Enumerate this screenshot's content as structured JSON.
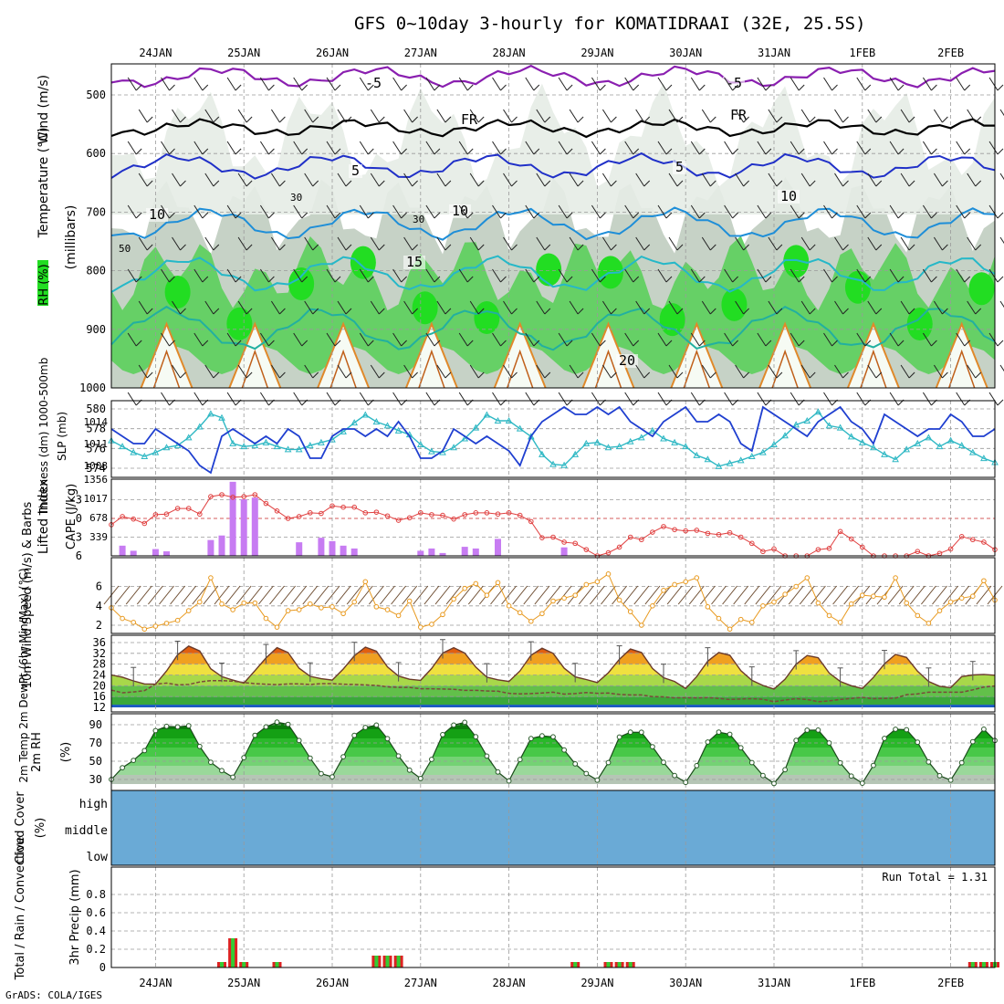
{
  "header": {
    "title": "GFS 0~10day 3-hourly for KOMATIDRAAI (32E, 25.5S)",
    "credit": "GrADS: COLA/IGES"
  },
  "colors": {
    "rh_green": "#22dd22",
    "rh_grey": "#a9b8a9",
    "cape": "#c77cf2",
    "lifted": "#e04040",
    "slp": "#1f3fd0",
    "thickness": "#2fb8c4",
    "wind": "#e89a20",
    "cloud_bg": "#6aaad6",
    "cloud_fill": "#dadada",
    "rain": "#dd2222",
    "conv": "#33cc33"
  },
  "chart_data": {
    "type": "line",
    "time_axis": {
      "step_hours": 3,
      "day_labels": [
        "24JAN",
        "25JAN",
        "26JAN",
        "27JAN",
        "28JAN",
        "29JAN",
        "30JAN",
        "31JAN",
        "1FEB",
        "2FEB"
      ],
      "n_steps": 81
    },
    "panels": [
      {
        "id": "upper_air",
        "ylabel_parts": [
          "RH (%)",
          "Temperature (°C)",
          "Wind (m/s)",
          "(millibars)"
        ],
        "yticks": [
          500,
          600,
          700,
          800,
          900,
          1000
        ],
        "isotherm_labels": [
          "-5",
          "FR",
          "-5",
          "FR",
          "5",
          "5",
          "10",
          "10",
          "10",
          "15",
          "20"
        ],
        "rh_labels": [
          "30",
          "30",
          "50"
        ]
      },
      {
        "id": "slp_thickness",
        "ylabel": "SLP (mb)",
        "ylabel2": "Thickness (dm) 1000-500mb",
        "yticks_left": [
          "574",
          "576",
          "578",
          "580"
        ],
        "yticks_right": [
          "1008",
          "1011",
          "1014"
        ],
        "slp": [
          1013,
          1012,
          1011,
          1011,
          1013,
          1012,
          1011,
          1010,
          1008,
          1007,
          1012,
          1013,
          1012,
          1011,
          1012,
          1011,
          1013,
          1012,
          1009,
          1009,
          1012,
          1013,
          1013,
          1012,
          1013,
          1012,
          1014,
          1012,
          1009,
          1009,
          1010,
          1013,
          1012,
          1011,
          1012,
          1011,
          1010,
          1008,
          1012,
          1014,
          1015,
          1016,
          1015,
          1015,
          1016,
          1015,
          1016,
          1014,
          1013,
          1012,
          1014,
          1015,
          1016,
          1014,
          1014,
          1015,
          1014,
          1011,
          1010,
          1016,
          1015,
          1014,
          1013,
          1012,
          1014,
          1015,
          1016,
          1014,
          1013,
          1011,
          1015,
          1014,
          1013,
          1012,
          1013,
          1013,
          1015,
          1014,
          1012,
          1012,
          1013
        ],
        "thickness": [
          576.8,
          576.2,
          575.6,
          575.2,
          575.6,
          576.1,
          576.3,
          577.1,
          578.2,
          579.5,
          579.1,
          576.5,
          576.2,
          576.3,
          576.6,
          576.2,
          575.9,
          575.9,
          576.3,
          576.6,
          576.9,
          577.7,
          578.6,
          579.4,
          578.7,
          578.3,
          577.8,
          577.4,
          576.4,
          575.7,
          575.6,
          576.1,
          577.0,
          578.1,
          579.4,
          578.8,
          578.8,
          578.0,
          577.2,
          575.4,
          574.4,
          574.3,
          575.4,
          576.5,
          576.6,
          576.1,
          576.2,
          576.7,
          577.1,
          577.8,
          577.0,
          576.6,
          576.2,
          575.3,
          574.9,
          574.2,
          574.5,
          574.8,
          575.2,
          575.6,
          576.4,
          577.3,
          578.4,
          578.8,
          579.7,
          578.3,
          578.1,
          577.2,
          576.6,
          576.1,
          575.4,
          574.9,
          575.9,
          576.5,
          577.1,
          576.2,
          576.8,
          576.3,
          575.6,
          575.0,
          574.6
        ]
      },
      {
        "id": "cape_li",
        "ylabel": "Lifted Index",
        "ylabel2": "CAPE (J/kg)",
        "yticks_left": [
          "-3",
          "0",
          "3",
          "6"
        ],
        "yticks_right": [
          "339",
          "678",
          "1017",
          "1356"
        ],
        "lifted_index": [
          1.0,
          -0.3,
          0.1,
          0.8,
          -0.6,
          -0.7,
          -1.6,
          -1.6,
          -0.7,
          -3.5,
          -3.8,
          -3.4,
          -3.5,
          -3.8,
          -2.4,
          -1.2,
          0.0,
          -0.3,
          -0.9,
          -0.8,
          -2.0,
          -1.8,
          -1.8,
          -0.9,
          -1.0,
          -0.4,
          0.3,
          -0.1,
          -0.9,
          -0.6,
          -0.5,
          0.1,
          -0.6,
          -0.9,
          -0.9,
          -0.7,
          -0.9,
          -0.5,
          0.5,
          3.1,
          3.0,
          3.8,
          4.0,
          5.0,
          6.1,
          5.5,
          4.6,
          3.0,
          3.4,
          2.2,
          1.3,
          1.8,
          2.0,
          1.9,
          2.4,
          2.6,
          2.3,
          3.0,
          4.0,
          5.3,
          4.9,
          6.2,
          6.5,
          6.2,
          5.0,
          4.8,
          2.1,
          3.3,
          4.6,
          6.5,
          6.2,
          6.3,
          6.6,
          5.3,
          6.4,
          5.6,
          4.9,
          2.9,
          3.4,
          3.8,
          5.0
        ],
        "cape": [
          0,
          180,
          90,
          0,
          120,
          80,
          0,
          0,
          0,
          280,
          360,
          1310,
          1000,
          1030,
          0,
          0,
          0,
          240,
          0,
          320,
          260,
          180,
          130,
          0,
          0,
          0,
          0,
          0,
          90,
          130,
          50,
          0,
          160,
          130,
          0,
          300,
          0,
          0,
          0,
          0,
          0,
          150,
          0,
          0,
          0,
          0,
          0,
          0,
          0,
          0,
          0,
          0,
          0,
          0,
          0,
          0,
          0,
          0,
          0,
          0,
          0,
          0,
          0,
          0,
          0,
          0,
          0,
          0,
          0,
          0,
          0,
          0,
          0,
          0,
          0,
          0,
          0,
          0,
          0,
          0,
          0
        ]
      },
      {
        "id": "wind10m",
        "ylabel": "10m Wind Speed (m/s) & Barbs",
        "yticks": [
          "2",
          "4",
          "6"
        ],
        "speed": [
          3.8,
          2.7,
          2.3,
          1.6,
          1.9,
          2.2,
          2.5,
          3.5,
          4.4,
          6.9,
          4.2,
          3.6,
          4.3,
          4.3,
          2.7,
          1.8,
          3.5,
          3.6,
          4.2,
          3.8,
          3.9,
          3.2,
          4.4,
          6.5,
          3.9,
          3.6,
          3.0,
          4.5,
          1.8,
          2.1,
          3.1,
          4.7,
          5.8,
          6.3,
          5.1,
          6.4,
          4.0,
          3.3,
          2.4,
          3.2,
          4.5,
          4.8,
          5.1,
          6.2,
          6.5,
          7.3,
          4.6,
          3.4,
          2.0,
          4.0,
          5.6,
          6.2,
          6.5,
          6.9,
          3.9,
          2.7,
          1.6,
          2.6,
          2.3,
          4.0,
          4.4,
          5.2,
          6.0,
          6.9,
          4.3,
          3.0,
          2.3,
          4.2,
          5.1,
          5.0,
          4.9,
          6.9,
          4.3,
          3.0,
          2.2,
          3.5,
          4.4,
          4.8,
          5.0,
          6.6,
          4.6
        ]
      },
      {
        "id": "temp2m",
        "ylabel": "2m Temp 2m DewPt (6hr Min/Max) (°C)",
        "yticks": [
          "12",
          "16",
          "20",
          "24",
          "28",
          "32",
          "36"
        ],
        "temp": [
          24.0,
          23.2,
          21.8,
          20.7,
          20.6,
          25.5,
          31.5,
          34.7,
          32.9,
          26.3,
          23.4,
          22.1,
          21.0,
          25.6,
          30.3,
          34.1,
          32.3,
          26.5,
          23.5,
          22.6,
          22.1,
          26.2,
          31.1,
          34.3,
          32.8,
          27.0,
          23.6,
          22.4,
          22.0,
          26.4,
          32.1,
          34.1,
          32.1,
          26.9,
          23.2,
          22.2,
          21.6,
          25.5,
          31.3,
          33.9,
          32.0,
          26.5,
          23.3,
          22.3,
          21.2,
          24.8,
          29.8,
          33.6,
          32.3,
          26.4,
          23.0,
          21.6,
          19.0,
          23.4,
          29.1,
          32.3,
          31.3,
          25.6,
          22.0,
          20.1,
          18.8,
          22.4,
          28.0,
          31.2,
          30.4,
          24.7,
          21.6,
          20.0,
          19.0,
          23.1,
          28.1,
          31.6,
          30.5,
          25.4,
          21.6,
          19.8,
          19.3,
          23.4,
          24.0,
          24.2,
          23.9
        ],
        "dewpoint": [
          18.4,
          17.4,
          17.7,
          18.2,
          20.6,
          21.0,
          20.3,
          20.5,
          21.4,
          21.9,
          21.9,
          21.7,
          21.2,
          20.8,
          20.6,
          20.4,
          20.7,
          20.7,
          20.5,
          20.8,
          20.8,
          20.6,
          20.5,
          20.3,
          20.1,
          19.6,
          19.4,
          19.4,
          18.9,
          18.9,
          18.8,
          18.7,
          18.3,
          18.3,
          18.1,
          18.0,
          17.2,
          17.0,
          17.1,
          17.3,
          17.6,
          16.9,
          17.1,
          17.5,
          17.2,
          17.3,
          16.8,
          16.6,
          16.6,
          16.0,
          15.9,
          15.5,
          15.6,
          15.5,
          15.6,
          15.3,
          14.9,
          15.1,
          15.2,
          15.0,
          14.1,
          14.7,
          15.2,
          14.9,
          14.1,
          14.4,
          14.9,
          15.3,
          15.7,
          15.2,
          15.3,
          15.4,
          16.7,
          17.0,
          17.6,
          17.6,
          17.6,
          17.6,
          18.5,
          19.5,
          19.9
        ]
      },
      {
        "id": "rh2m",
        "ylabel": "2m RH (%)",
        "yticks": [
          "30",
          "50",
          "70",
          "90"
        ],
        "rh": [
          30.0,
          42.9,
          50.9,
          61.6,
          83.5,
          88.2,
          87.6,
          88.8,
          66.2,
          48.9,
          39.7,
          32.5,
          53.9,
          78.4,
          87.6,
          92.8,
          90.4,
          72.7,
          53.4,
          36.4,
          32.9,
          54.9,
          78.3,
          87.0,
          89.6,
          74.7,
          55.7,
          40.2,
          31.1,
          52.0,
          79.1,
          89.6,
          92.6,
          76.8,
          55.6,
          38.2,
          28.4,
          51.8,
          74.8,
          77.8,
          76.7,
          62.3,
          47.1,
          36.5,
          29.3,
          48.5,
          76.5,
          81.8,
          81.7,
          65.9,
          48.8,
          34.3,
          26.8,
          45.1,
          71.0,
          81.9,
          79.5,
          64.7,
          48.5,
          34.3,
          25.6,
          40.7,
          72.8,
          84.0,
          84.1,
          70.0,
          48.2,
          33.7,
          25.9,
          45.4,
          75.0,
          85.0,
          84.5,
          70.8,
          49.2,
          34.1,
          29.3,
          48.4,
          71.4,
          85.1,
          72.7
        ]
      },
      {
        "id": "cloud",
        "ylabel": "Cloud Cover (%)",
        "levels": [
          "high",
          "middle",
          "low"
        ],
        "high": [
          0,
          0,
          0,
          0,
          0,
          0,
          0,
          0,
          0,
          0,
          0,
          0,
          0,
          0,
          0,
          0,
          0,
          0,
          0,
          0,
          0,
          0,
          0,
          0,
          0,
          0,
          0,
          0,
          0,
          0,
          0,
          0,
          0,
          0,
          0,
          0,
          0,
          0,
          0,
          0,
          0,
          0,
          0,
          0,
          0,
          0,
          0,
          0,
          0,
          0,
          0,
          0,
          0,
          0,
          0,
          0,
          0,
          0,
          0,
          0,
          0,
          0,
          0,
          0,
          0,
          0,
          0,
          0,
          0,
          0,
          0,
          0,
          0,
          0,
          0,
          0,
          0,
          0,
          0,
          0,
          0
        ],
        "low": [
          0,
          0,
          0,
          0,
          0,
          0,
          0,
          0,
          0,
          0,
          0,
          0,
          0,
          0,
          0,
          0,
          0,
          0,
          0,
          0,
          0,
          0,
          0,
          0,
          0,
          0,
          0,
          0,
          0,
          0,
          0,
          0,
          0,
          0,
          0,
          0,
          0,
          0,
          0,
          0,
          0,
          0,
          0,
          0,
          0,
          0,
          0,
          0,
          0,
          0,
          0,
          0,
          0,
          0,
          0,
          0,
          0,
          0,
          0,
          0,
          0,
          0,
          0,
          0,
          0,
          0,
          0,
          0,
          0,
          0,
          0,
          0,
          0,
          0,
          0,
          0,
          0,
          0,
          0,
          0,
          0
        ]
      },
      {
        "id": "precip",
        "ylabel": "3hr Precip (mm)",
        "ylabel2": "Total / Rain / Convective",
        "yticks": [
          "0",
          "0.2",
          "0.4",
          "0.6",
          "0.8"
        ],
        "run_total_label": "Run Total = 1.31",
        "precip": [
          0,
          0,
          0,
          0,
          0,
          0,
          0,
          0,
          0,
          0,
          0.06,
          0.32,
          0.06,
          0,
          0,
          0.06,
          0,
          0,
          0,
          0,
          0,
          0,
          0,
          0,
          0.13,
          0.13,
          0.13,
          0,
          0,
          0,
          0,
          0,
          0,
          0,
          0,
          0,
          0,
          0,
          0,
          0,
          0,
          0,
          0.06,
          0,
          0,
          0.06,
          0.06,
          0.06,
          0,
          0,
          0,
          0,
          0,
          0,
          0,
          0,
          0,
          0,
          0,
          0,
          0,
          0,
          0,
          0,
          0,
          0,
          0,
          0,
          0,
          0,
          0,
          0,
          0,
          0,
          0,
          0,
          0,
          0,
          0.06,
          0.06,
          0.06
        ]
      }
    ]
  }
}
